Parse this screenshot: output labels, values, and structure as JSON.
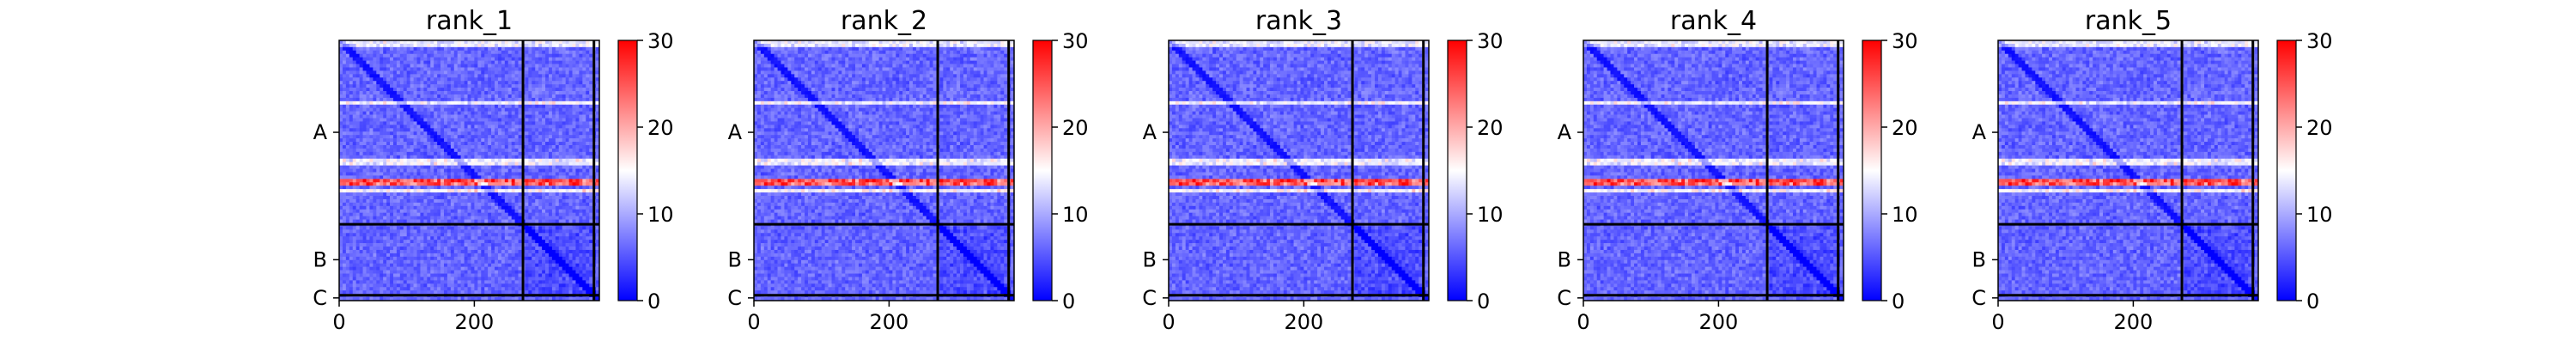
{
  "chart_data": {
    "type": "heatmap",
    "panels": [
      {
        "title": "rank_1"
      },
      {
        "title": "rank_2"
      },
      {
        "title": "rank_3"
      },
      {
        "title": "rank_4"
      },
      {
        "title": "rank_5"
      }
    ],
    "n_residues": 385,
    "chains": [
      {
        "label": "A",
        "start": 0,
        "end": 272
      },
      {
        "label": "B",
        "start": 272,
        "end": 377
      },
      {
        "label": "C",
        "start": 377,
        "end": 385
      }
    ],
    "chain_boundaries": [
      272,
      377
    ],
    "x_ticks": [
      {
        "value": 0,
        "label": "0"
      },
      {
        "value": 200,
        "label": "200"
      }
    ],
    "colorbar": {
      "min": 0,
      "max": 30,
      "ticks": [
        {
          "value": 0,
          "label": "0"
        },
        {
          "value": 10,
          "label": "10"
        },
        {
          "value": 20,
          "label": "20"
        },
        {
          "value": 30,
          "label": "30"
        }
      ],
      "colors": [
        "#0000ff",
        "#ffffff",
        "#ff0000"
      ]
    },
    "colors": {
      "low": "#0000ff",
      "mid": "#ffffff",
      "high": "#ff0000",
      "boundary": "#000000"
    }
  }
}
